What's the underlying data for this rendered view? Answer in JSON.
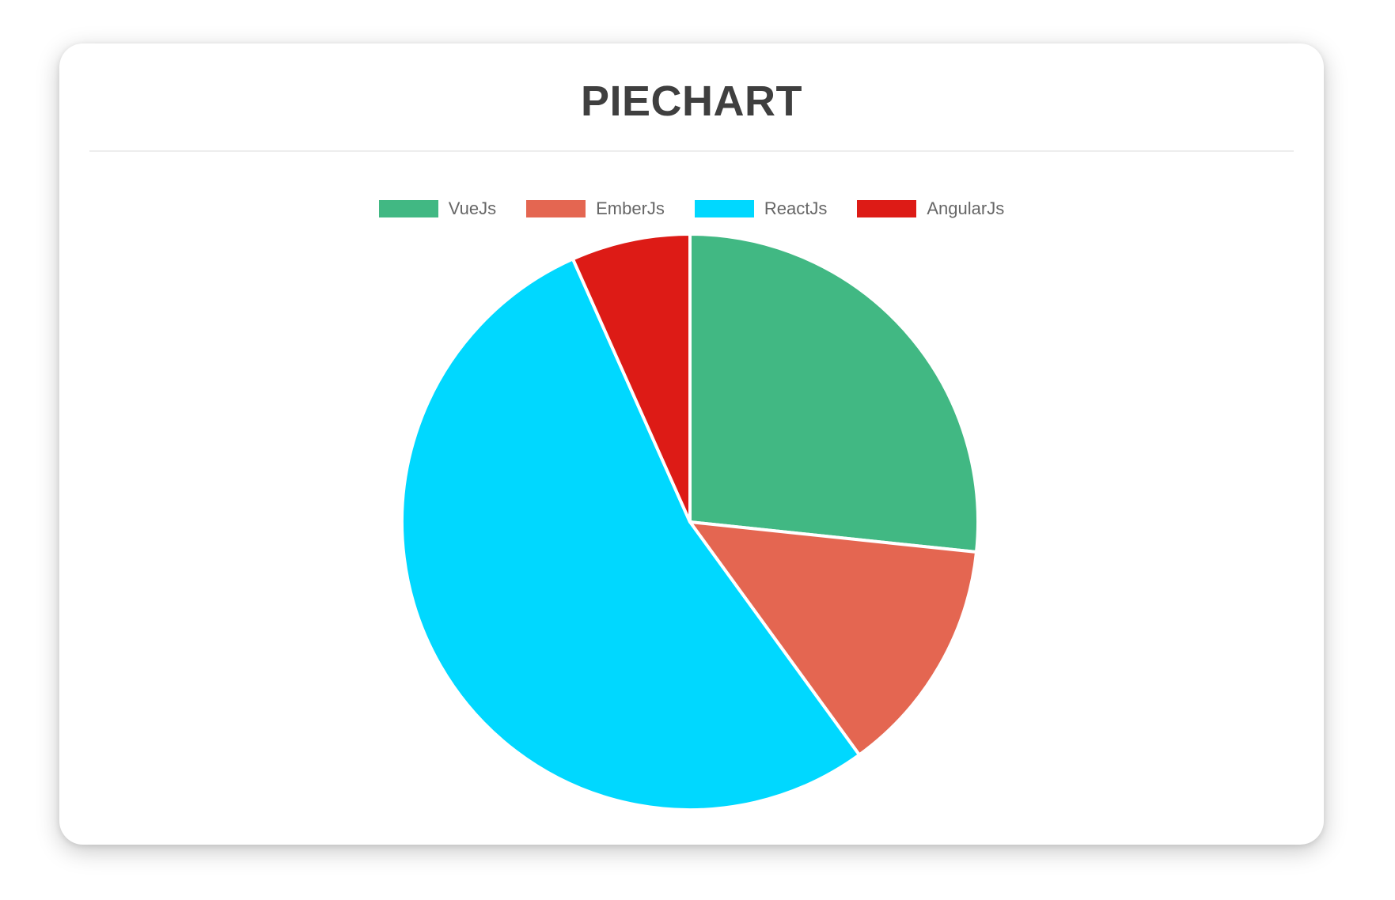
{
  "card": {
    "background": "#ffffff"
  },
  "chart_data": {
    "type": "pie",
    "title": "PIECHART",
    "title_color": "#3F3F3F",
    "categories": [
      "VueJs",
      "EmberJs",
      "ReactJs",
      "AngularJs"
    ],
    "values_percent": [
      26.7,
      13.3,
      53.3,
      6.7
    ],
    "angles_deg": [
      96,
      48,
      192,
      24
    ],
    "colors": [
      "#41B883",
      "#E46651",
      "#00D8FF",
      "#DD1B16"
    ],
    "start_angle_deg": 0,
    "rotation": "clockwise-from-top",
    "slice_border_color": "#FFFFFF",
    "slice_border_width": 4,
    "legend": {
      "position": "top",
      "text_color": "#666666",
      "items": [
        {
          "label": "VueJs",
          "color": "#41B883"
        },
        {
          "label": "EmberJs",
          "color": "#E46651"
        },
        {
          "label": "ReactJs",
          "color": "#00D8FF"
        },
        {
          "label": "AngularJs",
          "color": "#DD1B16"
        }
      ]
    }
  }
}
